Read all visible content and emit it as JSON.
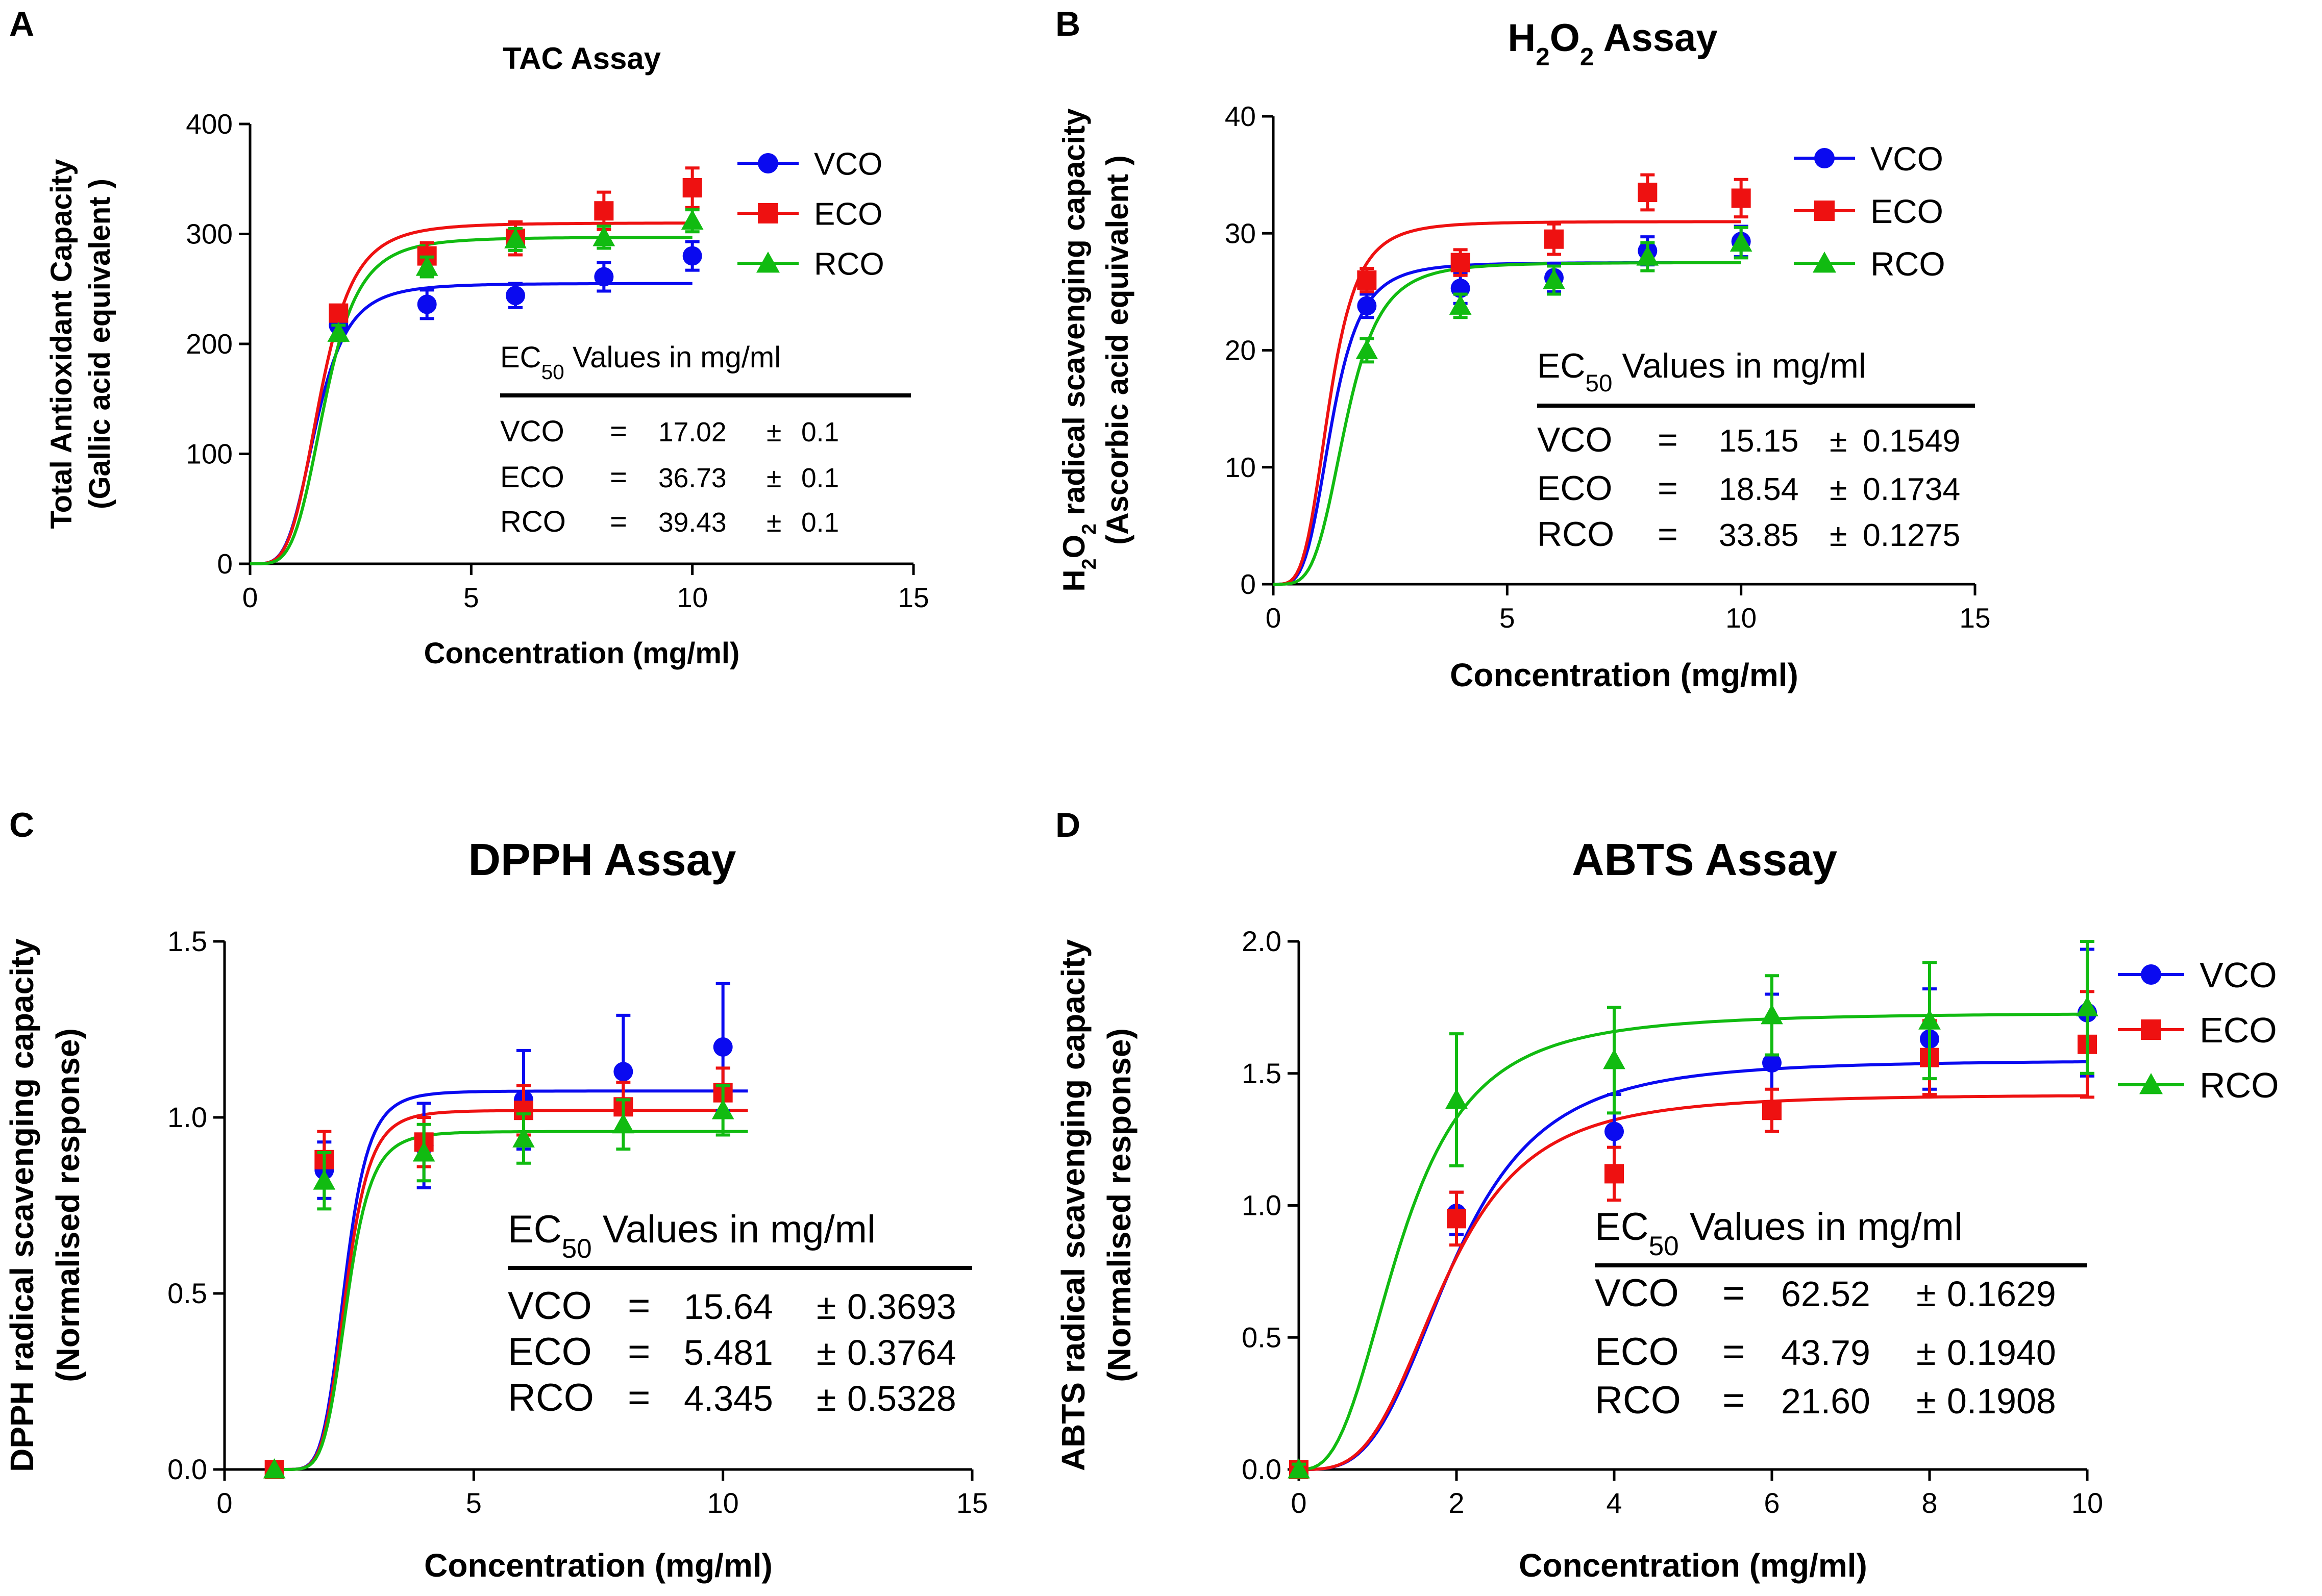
{
  "figure": {
    "colors": {
      "VCO": "#0a0af0",
      "ECO": "#ee1111",
      "RCO": "#11bb11"
    },
    "ec_header_prefix": "EC",
    "ec_header_subscript": "50",
    "ec_header_suffix": " Values in mg/ml",
    "pm_symbol": "±",
    "eq_symbol": "="
  },
  "chart_data": [
    {
      "type": "scatter",
      "panel_letter": "A",
      "title": "TAC Assay",
      "xlabel": "Concentration (mg/ml)",
      "ylabel": "Total Antioxidant Capacity",
      "ylabel2": "(Gallic acid equivalent )",
      "xlim": [
        0,
        15
      ],
      "ylim": [
        0,
        400
      ],
      "xticks": [
        0,
        5,
        10,
        15
      ],
      "yticks": [
        0,
        100,
        200,
        300,
        400
      ],
      "series": [
        {
          "name": "VCO",
          "marker": "circle",
          "x": [
            2,
            4,
            6,
            8,
            10
          ],
          "y": [
            217,
            236,
            244,
            261,
            280
          ],
          "err": [
            10,
            13,
            11,
            13,
            13
          ],
          "fit": {
            "top": 255,
            "ec50": 1.5,
            "hill": 4.2,
            "xmin": 0,
            "xmax": 10
          }
        },
        {
          "name": "ECO",
          "marker": "square",
          "x": [
            2,
            4,
            6,
            8,
            10
          ],
          "y": [
            228,
            280,
            296,
            321,
            342
          ],
          "err": [
            7,
            12,
            15,
            17,
            18
          ],
          "fit": {
            "top": 310,
            "ec50": 1.6,
            "hill": 4.2,
            "xmin": 0,
            "xmax": 10
          }
        },
        {
          "name": "RCO",
          "marker": "triangle",
          "x": [
            2,
            4,
            6,
            8,
            10
          ],
          "y": [
            210,
            270,
            295,
            297,
            312
          ],
          "err": [
            7,
            9,
            10,
            10,
            10
          ],
          "fit": {
            "top": 297,
            "ec50": 1.7,
            "hill": 4.4,
            "xmin": 0,
            "xmax": 10
          }
        }
      ],
      "ec50_table": [
        {
          "label": "VCO",
          "value": "17.02",
          "error": "0.1"
        },
        {
          "label": "ECO",
          "value": "36.73",
          "error": "0.1"
        },
        {
          "label": "RCO",
          "value": "39.43",
          "error": "0.1"
        }
      ]
    },
    {
      "type": "scatter",
      "panel_letter": "B",
      "title_main": "H",
      "title_sub1": "2",
      "title_mid": "O",
      "title_sub2": "2",
      "title_end": " Assay",
      "xlabel": "Concentration (mg/ml)",
      "ylabel_main": "H",
      "ylabel_sub1": "2",
      "ylabel_mid": "O",
      "ylabel_sub2": "2",
      "ylabel_end": " radical scavenging capacity",
      "ylabel2": "(Ascorbic acid equivalent )",
      "xlim": [
        0,
        15
      ],
      "ylim": [
        0,
        40
      ],
      "xticks": [
        0,
        5,
        10,
        15
      ],
      "yticks": [
        0,
        10,
        20,
        30,
        40
      ],
      "series": [
        {
          "name": "VCO",
          "marker": "circle",
          "x": [
            2,
            4,
            6,
            8,
            10
          ],
          "y": [
            23.8,
            25.3,
            26.2,
            28.5,
            29.3
          ],
          "err": [
            1.0,
            1.3,
            1.2,
            1.2,
            1.3
          ],
          "fit": {
            "top": 27.5,
            "ec50": 1.25,
            "hill": 4.0,
            "xmin": 0,
            "xmax": 10
          }
        },
        {
          "name": "ECO",
          "marker": "square",
          "x": [
            2,
            4,
            6,
            8,
            10
          ],
          "y": [
            26.0,
            27.5,
            29.5,
            33.5,
            33.0
          ],
          "err": [
            1.0,
            1.1,
            1.3,
            1.5,
            1.6
          ],
          "fit": {
            "top": 31.0,
            "ec50": 1.2,
            "hill": 4.0,
            "xmin": 0,
            "xmax": 10
          }
        },
        {
          "name": "RCO",
          "marker": "triangle",
          "x": [
            2,
            4,
            6,
            8,
            10
          ],
          "y": [
            20.0,
            23.8,
            26.0,
            28.0,
            29.2
          ],
          "err": [
            1.0,
            1.0,
            1.2,
            1.2,
            1.3
          ],
          "fit": {
            "top": 27.5,
            "ec50": 1.55,
            "hill": 4.2,
            "xmin": 0,
            "xmax": 10
          }
        }
      ],
      "ec50_table": [
        {
          "label": "VCO",
          "value": "15.15",
          "error": "0.1549"
        },
        {
          "label": "ECO",
          "value": "18.54",
          "error": "0.1734"
        },
        {
          "label": "RCO",
          "value": "33.85",
          "error": "0.1275"
        }
      ]
    },
    {
      "type": "scatter",
      "panel_letter": "C",
      "title": "DPPH Assay",
      "xlabel": "Concentration (mg/ml)",
      "ylabel": "DPPH radical scavenging capacity",
      "ylabel2": "(Normalised response)",
      "xlim": [
        0,
        15
      ],
      "ylim": [
        0,
        1.5
      ],
      "xticks": [
        0,
        5,
        10,
        15
      ],
      "yticks": [
        0.0,
        0.5,
        1.0,
        1.5
      ],
      "ytick_labels": [
        "0.0",
        "0.5",
        "1.0",
        "1.5"
      ],
      "series": [
        {
          "name": "VCO",
          "marker": "circle",
          "x": [
            1,
            2,
            4,
            6,
            8,
            10
          ],
          "y": [
            0.0,
            0.85,
            0.92,
            1.05,
            1.13,
            1.2
          ],
          "err": [
            0.0,
            0.08,
            0.12,
            0.14,
            0.16,
            0.18
          ],
          "fit": {
            "top": 1.075,
            "ec50": 1.42,
            "hill": 6.0,
            "xmin": 1,
            "xmax": 10.5,
            "offset": 1.0
          }
        },
        {
          "name": "ECO",
          "marker": "square",
          "x": [
            1,
            2,
            4,
            6,
            8,
            10
          ],
          "y": [
            0.0,
            0.88,
            0.93,
            1.02,
            1.03,
            1.07
          ],
          "err": [
            0.0,
            0.08,
            0.07,
            0.07,
            0.07,
            0.07
          ],
          "fit": {
            "top": 1.02,
            "ec50": 1.44,
            "hill": 6.0,
            "xmin": 1,
            "xmax": 10.5,
            "offset": 1.0
          }
        },
        {
          "name": "RCO",
          "marker": "triangle",
          "x": [
            1,
            2,
            4,
            6,
            8,
            10
          ],
          "y": [
            0.0,
            0.82,
            0.9,
            0.94,
            0.98,
            1.02
          ],
          "err": [
            0.0,
            0.08,
            0.08,
            0.07,
            0.07,
            0.07
          ],
          "fit": {
            "top": 0.96,
            "ec50": 1.46,
            "hill": 6.0,
            "xmin": 1,
            "xmax": 10.5,
            "offset": 1.0
          }
        }
      ],
      "ec50_table": [
        {
          "label": "VCO",
          "value": "15.64",
          "error": "0.3693"
        },
        {
          "label": "ECO",
          "value": "5.481",
          "error": "0.3764"
        },
        {
          "label": "RCO",
          "value": "4.345",
          "error": "0.5328"
        }
      ]
    },
    {
      "type": "scatter",
      "panel_letter": "D",
      "title": "ABTS Assay",
      "xlabel": "Concentration (mg/ml)",
      "ylabel": "ABTS radical scavenging capacity",
      "ylabel2": "(Normalised response)",
      "xlim": [
        0,
        10
      ],
      "ylim": [
        0,
        2.0
      ],
      "xticks": [
        0,
        2,
        4,
        6,
        8,
        10
      ],
      "yticks": [
        0.0,
        0.5,
        1.0,
        1.5,
        2.0
      ],
      "ytick_labels": [
        "0.0",
        "0.5",
        "1.0",
        "1.5",
        "2.0"
      ],
      "series": [
        {
          "name": "VCO",
          "marker": "circle",
          "x": [
            0,
            2,
            4,
            6,
            8,
            10
          ],
          "y": [
            0.0,
            0.97,
            1.28,
            1.54,
            1.63,
            1.73
          ],
          "err": [
            0.02,
            0.08,
            0.14,
            0.26,
            0.19,
            0.24
          ],
          "fit": {
            "top": 1.55,
            "ec50": 1.95,
            "hill": 3.4,
            "xmin": 0,
            "xmax": 10
          }
        },
        {
          "name": "ECO",
          "marker": "square",
          "x": [
            0,
            2,
            4,
            6,
            8,
            10
          ],
          "y": [
            0.0,
            0.95,
            1.12,
            1.36,
            1.56,
            1.61
          ],
          "err": [
            0.02,
            0.1,
            0.1,
            0.08,
            0.14,
            0.2
          ],
          "fit": {
            "top": 1.42,
            "ec50": 1.85,
            "hill": 3.4,
            "xmin": 0,
            "xmax": 10
          }
        },
        {
          "name": "RCO",
          "marker": "triangle",
          "x": [
            0,
            2,
            4,
            6,
            8,
            10
          ],
          "y": [
            0.0,
            1.4,
            1.55,
            1.72,
            1.7,
            1.75
          ],
          "err": [
            0.02,
            0.25,
            0.2,
            0.15,
            0.22,
            0.25
          ],
          "fit": {
            "top": 1.73,
            "ec50": 1.3,
            "hill": 2.8,
            "xmin": 0,
            "xmax": 10
          }
        }
      ],
      "ec50_table": [
        {
          "label": "VCO",
          "value": "62.52",
          "error": "0.1629"
        },
        {
          "label": "ECO",
          "value": "43.79",
          "error": "0.1940"
        },
        {
          "label": "RCO",
          "value": "21.60",
          "error": "0.1908"
        }
      ]
    }
  ]
}
